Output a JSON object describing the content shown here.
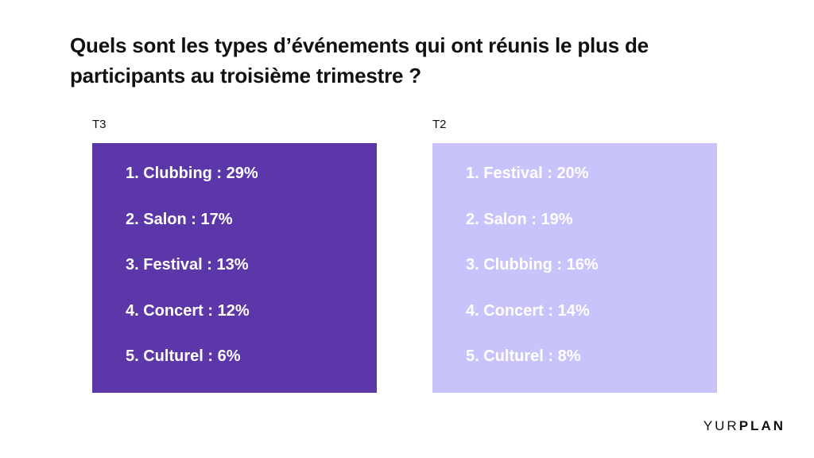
{
  "title": "Quels sont les types d’événements qui ont réunis le plus de participants au troisième trimestre ?",
  "columns": [
    {
      "label": "T3",
      "bg_color": "#5c37aa",
      "text_color": "#ffffff",
      "items": [
        "1. Clubbing : 29%",
        "2. Salon : 17%",
        "3. Festival : 13%",
        "4. Concert : 12%",
        "5. Culturel : 6%"
      ]
    },
    {
      "label": "T2",
      "bg_color": "#c9c3fb",
      "text_color": "#ffffff",
      "items": [
        "1. Festival : 20%",
        "2. Salon : 19%",
        "3. Clubbing : 16%",
        "4. Concert : 14%",
        "5. Culturel : 8%"
      ]
    }
  ],
  "logo": {
    "part1": "YUR",
    "part2": "PLAN"
  }
}
